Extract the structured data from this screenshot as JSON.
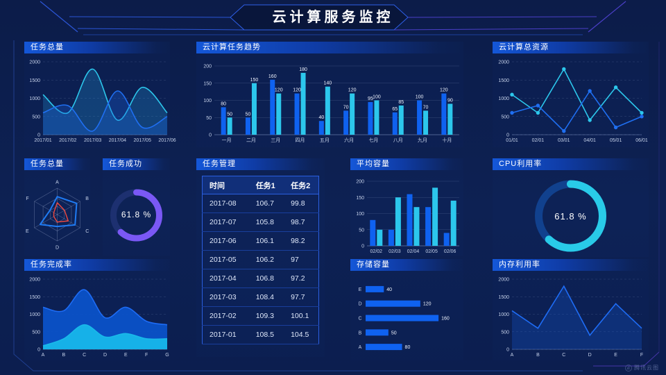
{
  "page": {
    "title": "云计算服务监控"
  },
  "brand": {
    "label": "腾讯云图"
  },
  "panels": {
    "tasks_total": {
      "title": "任务总量"
    },
    "task_trend": {
      "title": "云计算任务趋势"
    },
    "total_resources": {
      "title": "云计算总资源"
    },
    "tasks_radar": {
      "title": "任务总量"
    },
    "task_success": {
      "title": "任务成功",
      "value": "61.8 %"
    },
    "task_mgmt": {
      "title": "任务管理"
    },
    "avg_capacity": {
      "title": "平均容量"
    },
    "cpu": {
      "title": "CPU利用率",
      "value": "61.8 %"
    },
    "task_completion": {
      "title": "任务完成率"
    },
    "storage": {
      "title": "存储容量"
    },
    "memory": {
      "title": "内存利用率"
    }
  },
  "colors": {
    "blue": "#0f62f0",
    "cyan": "#2cc7ec",
    "purple": "#7a58f5",
    "red": "#f0483f"
  },
  "chart_data": [
    {
      "id": "tasks_total",
      "type": "area",
      "title": "任务总量",
      "categories": [
        "2017/01",
        "2017/02",
        "2017/03",
        "2017/04",
        "2017/05",
        "2017/06"
      ],
      "ylim": [
        0,
        2000
      ],
      "yticks": [
        0,
        500,
        1000,
        1500,
        2000
      ],
      "grid": "dashed",
      "series": [
        {
          "name": "series-cyan",
          "color": "#2cc7ec",
          "fill": "rgba(35,150,215,0.28)",
          "smooth": true,
          "values": [
            1100,
            600,
            1800,
            400,
            1300,
            600
          ]
        },
        {
          "name": "series-blue",
          "color": "#1f6ff2",
          "fill": "rgba(25,95,220,0.32)",
          "smooth": true,
          "values": [
            600,
            800,
            100,
            1200,
            200,
            500
          ]
        }
      ]
    },
    {
      "id": "task_trend",
      "type": "bar",
      "title": "云计算任务趋势",
      "categories": [
        "一月",
        "二月",
        "三月",
        "四月",
        "五月",
        "六月",
        "七月",
        "八月",
        "九月",
        "十月"
      ],
      "ylim": [
        0,
        200
      ],
      "yticks": [
        0,
        50,
        100,
        150,
        200
      ],
      "show_labels": true,
      "grid": "solid",
      "series": [
        {
          "name": "任务1",
          "color": "#0f62f0",
          "values": [
            80,
            50,
            160,
            120,
            40,
            70,
            95,
            65,
            100,
            120
          ]
        },
        {
          "name": "任务2",
          "color": "#2cc7ec",
          "values": [
            50,
            150,
            120,
            180,
            140,
            120,
            100,
            85,
            70,
            90
          ]
        }
      ]
    },
    {
      "id": "total_resources",
      "type": "line",
      "title": "云计算总资源",
      "categories": [
        "01/01",
        "02/01",
        "03/01",
        "04/01",
        "05/01",
        "06/01"
      ],
      "ylim": [
        0,
        2000
      ],
      "yticks": [
        0,
        500,
        1000,
        1500,
        2000
      ],
      "grid": "dashed",
      "series": [
        {
          "name": "series-cyan",
          "color": "#2cc7ec",
          "markers": true,
          "values": [
            1100,
            600,
            1800,
            400,
            1300,
            600
          ]
        },
        {
          "name": "series-blue",
          "color": "#1f6ff2",
          "markers": true,
          "values": [
            600,
            800,
            100,
            1200,
            200,
            500
          ]
        }
      ]
    },
    {
      "id": "tasks_radar",
      "type": "radar",
      "title": "任务总量",
      "indicators": [
        "A",
        "B",
        "C",
        "D",
        "E",
        "F"
      ],
      "max": 100,
      "series": [
        {
          "name": "blue",
          "color": "#1f7bf3",
          "values": [
            68,
            85,
            78,
            45,
            75,
            32
          ]
        },
        {
          "name": "red",
          "color": "#f0483f",
          "values": [
            45,
            32,
            48,
            28,
            15,
            15
          ]
        }
      ]
    },
    {
      "id": "task_success",
      "type": "donut",
      "title": "任务成功",
      "value": 61.8,
      "label": "61.8 %",
      "color": "#7a58f5",
      "track": "#1d3070"
    },
    {
      "id": "task_mgmt",
      "type": "table",
      "title": "任务管理",
      "columns": [
        "时间",
        "任务1",
        "任务2"
      ],
      "rows": [
        [
          "2017-08",
          "106.7",
          "99.8"
        ],
        [
          "2017-07",
          "105.8",
          "98.7"
        ],
        [
          "2017-06",
          "106.1",
          "98.2"
        ],
        [
          "2017-05",
          "106.2",
          "97"
        ],
        [
          "2017-04",
          "106.8",
          "97.2"
        ],
        [
          "2017-03",
          "108.4",
          "97.7"
        ],
        [
          "2017-02",
          "109.3",
          "100.1"
        ],
        [
          "2017-01",
          "108.5",
          "104.5"
        ]
      ]
    },
    {
      "id": "avg_capacity",
      "type": "bar",
      "title": "平均容量",
      "categories": [
        "02/02",
        "02/03",
        "02/04",
        "02/05",
        "02/06"
      ],
      "ylim": [
        0,
        200
      ],
      "yticks": [
        0,
        50,
        100,
        150,
        200
      ],
      "show_labels": false,
      "grid": "solid",
      "series": [
        {
          "name": "series-blue",
          "color": "#0f62f0",
          "values": [
            80,
            50,
            160,
            120,
            40
          ]
        },
        {
          "name": "series-cyan",
          "color": "#2cc7ec",
          "values": [
            50,
            150,
            120,
            180,
            140
          ]
        }
      ]
    },
    {
      "id": "cpu",
      "type": "donut",
      "title": "CPU利用率",
      "value": 61.8,
      "label": "61.8 %",
      "color": "#29cbe8",
      "track": "#11418e"
    },
    {
      "id": "task_completion",
      "type": "area",
      "title": "任务完成率",
      "categories": [
        "A",
        "B",
        "C",
        "D",
        "E",
        "F",
        "G"
      ],
      "ylim": [
        0,
        2000
      ],
      "yticks": [
        0,
        500,
        1000,
        1500,
        2000
      ],
      "grid": "dashed",
      "series": [
        {
          "name": "blue-area",
          "color": "#1e6cf5",
          "fill": "rgba(11,84,204,0.92)",
          "smooth": true,
          "values": [
            1200,
            1100,
            1700,
            900,
            1200,
            800,
            700
          ]
        },
        {
          "name": "cyan-area",
          "color": "#19b9e9",
          "fill": "rgba(23,182,234,0.95)",
          "smooth": true,
          "values": [
            100,
            300,
            700,
            350,
            450,
            300,
            300
          ]
        }
      ]
    },
    {
      "id": "storage",
      "type": "hbar",
      "title": "存储容量",
      "categories": [
        "E",
        "D",
        "C",
        "B",
        "A"
      ],
      "values": [
        40,
        120,
        160,
        50,
        80
      ],
      "xmax": 172,
      "color": "#0f62f0"
    },
    {
      "id": "memory",
      "type": "line",
      "title": "内存利用率",
      "categories": [
        "A",
        "B",
        "C",
        "D",
        "E",
        "F"
      ],
      "ylim": [
        0,
        2000
      ],
      "yticks": [
        0,
        500,
        1000,
        1500,
        2000
      ],
      "grid": "dashed",
      "series": [
        {
          "name": "series-blue",
          "color": "#1e6cf5",
          "fill": "rgba(20,85,205,0.30)",
          "values": [
            1100,
            600,
            1800,
            400,
            1300,
            600
          ]
        }
      ]
    }
  ]
}
